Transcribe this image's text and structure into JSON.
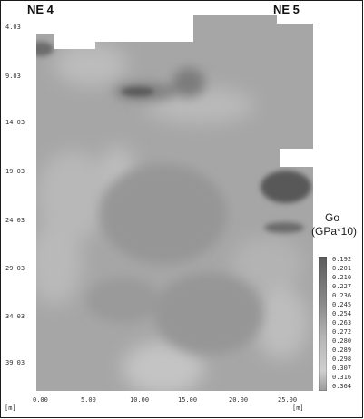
{
  "figure": {
    "labels": {
      "left": "NE 4",
      "right": "NE 5"
    },
    "y_ticks": [
      "4.03",
      "9.03",
      "14.03",
      "19.03",
      "24.03",
      "29.03",
      "34.03",
      "39.03"
    ],
    "x_ticks": [
      "0.00",
      "5.00",
      "10.00",
      "15.00",
      "20.00",
      "25.00"
    ],
    "x_unit": "[m]",
    "y_unit": "[m]",
    "legend": {
      "title": "Go",
      "unit": "(GPa*10)",
      "values": [
        "0.192",
        "0.201",
        "0.210",
        "0.227",
        "0.236",
        "0.245",
        "0.254",
        "0.263",
        "0.272",
        "0.280",
        "0.289",
        "0.298",
        "0.307",
        "0.316",
        "0.364"
      ]
    },
    "colors": {
      "low": "#606060",
      "high": "#cfcfcf",
      "mid": "#a3a3a3"
    }
  }
}
